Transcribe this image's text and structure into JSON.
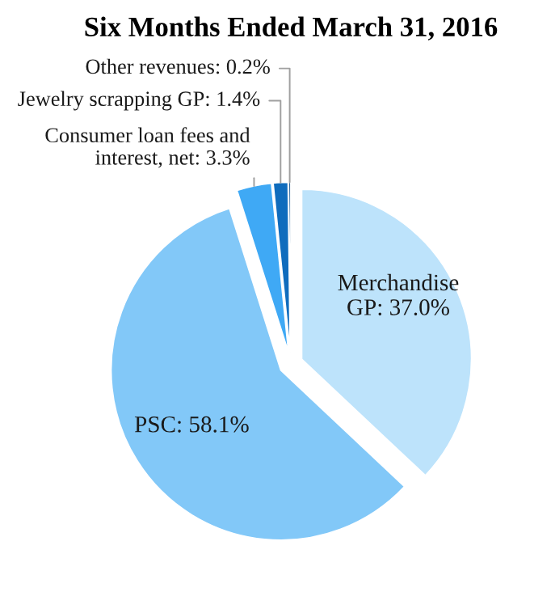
{
  "chart_data": {
    "type": "pie",
    "title": "Six Months Ended March 31, 2016",
    "categories": [
      "Merchandise\nGP",
      "PSC",
      "Consumer loan fees and\ninterest, net",
      "Jewelry scrapping GP",
      "Other revenues"
    ],
    "values": [
      37.0,
      58.1,
      3.3,
      1.4,
      0.2
    ],
    "value_labels": [
      "37.0%",
      "58.1%",
      "3.3%",
      "1.4%",
      "0.2%"
    ],
    "colors": [
      "#bde3fb",
      "#82c8f8",
      "#3fa9f5",
      "#0f6cbd",
      "#0a4d8c"
    ],
    "legend": false
  }
}
